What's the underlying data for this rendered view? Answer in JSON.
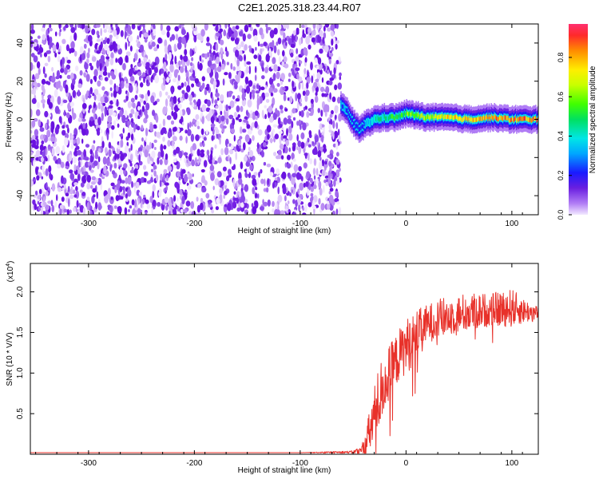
{
  "figure_title": "C2E1.2025.318.23.44.R07",
  "chart_data": [
    {
      "type": "heatmap",
      "title": "C2E1.2025.318.23.44.R07",
      "xlabel": "Height of straight line (km)",
      "ylabel": "Frequency (Hz)",
      "xlim": [
        -355,
        125
      ],
      "ylim": [
        -50,
        50
      ],
      "x_ticks": [
        -300,
        -200,
        -100,
        0,
        100
      ],
      "x_tick_labels": [
        "-300",
        "-200",
        "-100",
        "0",
        "100"
      ],
      "y_ticks": [
        -40,
        -20,
        0,
        20,
        40
      ],
      "y_tick_labels": [
        "-40",
        "-20",
        "0",
        "20",
        "40"
      ],
      "noise_region_x": [
        -355,
        -62
      ],
      "signal_band": {
        "x": [
          -62,
          -55,
          -50,
          -45,
          -40,
          -30,
          -20,
          -10,
          0,
          10,
          20,
          40,
          60,
          80,
          100,
          125
        ],
        "center_freq": [
          8,
          3,
          -2,
          -5,
          -3,
          0,
          1,
          1,
          3,
          2,
          1,
          1,
          0,
          1,
          0,
          0
        ],
        "peak_amplitude": [
          0.35,
          0.3,
          0.3,
          0.28,
          0.35,
          0.5,
          0.55,
          0.6,
          0.65,
          0.7,
          0.75,
          0.85,
          0.9,
          0.9,
          0.95,
          0.95
        ]
      },
      "colorbar": {
        "label": "Normalized spectral amplitude",
        "range": [
          0,
          0.97
        ],
        "ticks": [
          0.0,
          0.2,
          0.4,
          0.6,
          0.8
        ],
        "tick_labels": [
          "0.0",
          "0.2",
          "0.4",
          "0.6",
          "0.8"
        ]
      }
    },
    {
      "type": "line",
      "xlabel": "Height of straight line (km)",
      "ylabel": "SNR (10 * V/V)",
      "scale_label": "(x10",
      "scale_exponent": "4",
      "scale_close": ")",
      "xlim": [
        -355,
        125
      ],
      "ylim": [
        0,
        2.35
      ],
      "x_ticks": [
        -300,
        -200,
        -100,
        0,
        100
      ],
      "x_tick_labels": [
        "-300",
        "-200",
        "-100",
        "0",
        "100"
      ],
      "y_ticks": [
        0.5,
        1.0,
        1.5,
        2.0
      ],
      "y_tick_labels": [
        "0.5",
        "1.0",
        "1.5",
        "2.0"
      ],
      "series": [
        {
          "name": "SNR",
          "color": "#e8312a",
          "x": [
            -355,
            -300,
            -200,
            -100,
            -50,
            -42,
            -38,
            -34,
            -30,
            -26,
            -22,
            -18,
            -14,
            -10,
            -6,
            -2,
            0,
            5,
            10,
            20,
            30,
            40,
            60,
            80,
            100,
            110,
            125
          ],
          "y": [
            0.02,
            0.02,
            0.02,
            0.02,
            0.03,
            0.06,
            0.15,
            0.35,
            0.55,
            0.75,
            0.9,
            1.0,
            1.1,
            1.2,
            1.3,
            1.35,
            1.4,
            1.45,
            1.55,
            1.65,
            1.72,
            1.75,
            1.8,
            1.82,
            1.85,
            1.8,
            1.75
          ],
          "spread": [
            0,
            0,
            0,
            0,
            0.02,
            0.08,
            0.25,
            0.35,
            0.45,
            0.5,
            0.5,
            0.45,
            0.45,
            0.4,
            0.4,
            0.4,
            0.45,
            0.4,
            0.35,
            0.3,
            0.3,
            0.3,
            0.3,
            0.25,
            0.3,
            0.2,
            0.1
          ]
        }
      ]
    }
  ],
  "colors": {
    "noise_purple": "#7a1fe6",
    "noise_light": "#c9a6f2",
    "line_red": "#e8312a"
  }
}
